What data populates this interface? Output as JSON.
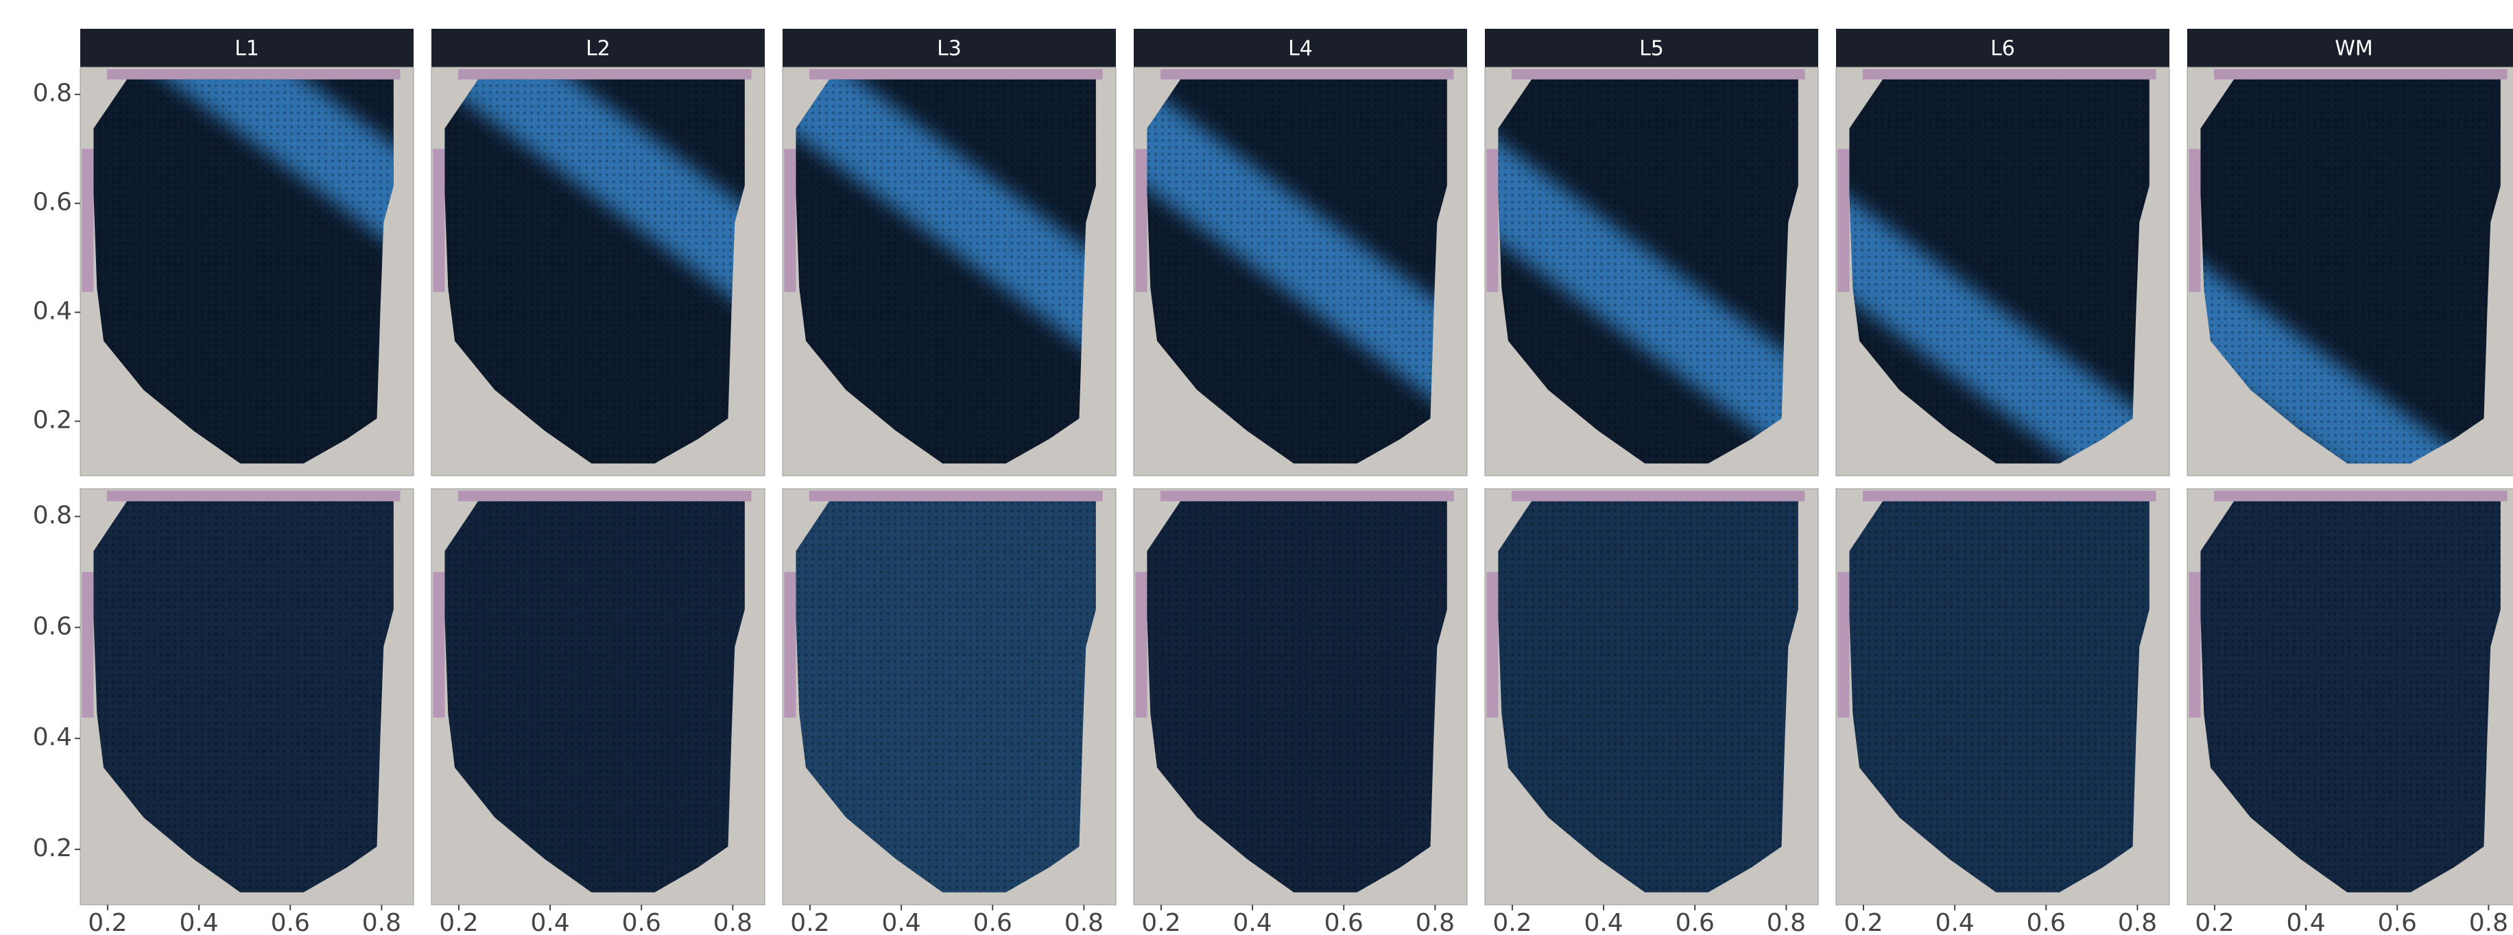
{
  "chart_data": {
    "type": "facet-image",
    "facets": [
      "L1",
      "L2",
      "L3",
      "L4",
      "L5",
      "L6",
      "WM"
    ],
    "xlim": [
      0.14,
      0.87
    ],
    "ylim": [
      0.1,
      0.85
    ],
    "xticks": [
      0.2,
      0.4,
      0.6,
      0.8
    ],
    "yticks": [
      0.2,
      0.4,
      0.6,
      0.8
    ]
  }
}
